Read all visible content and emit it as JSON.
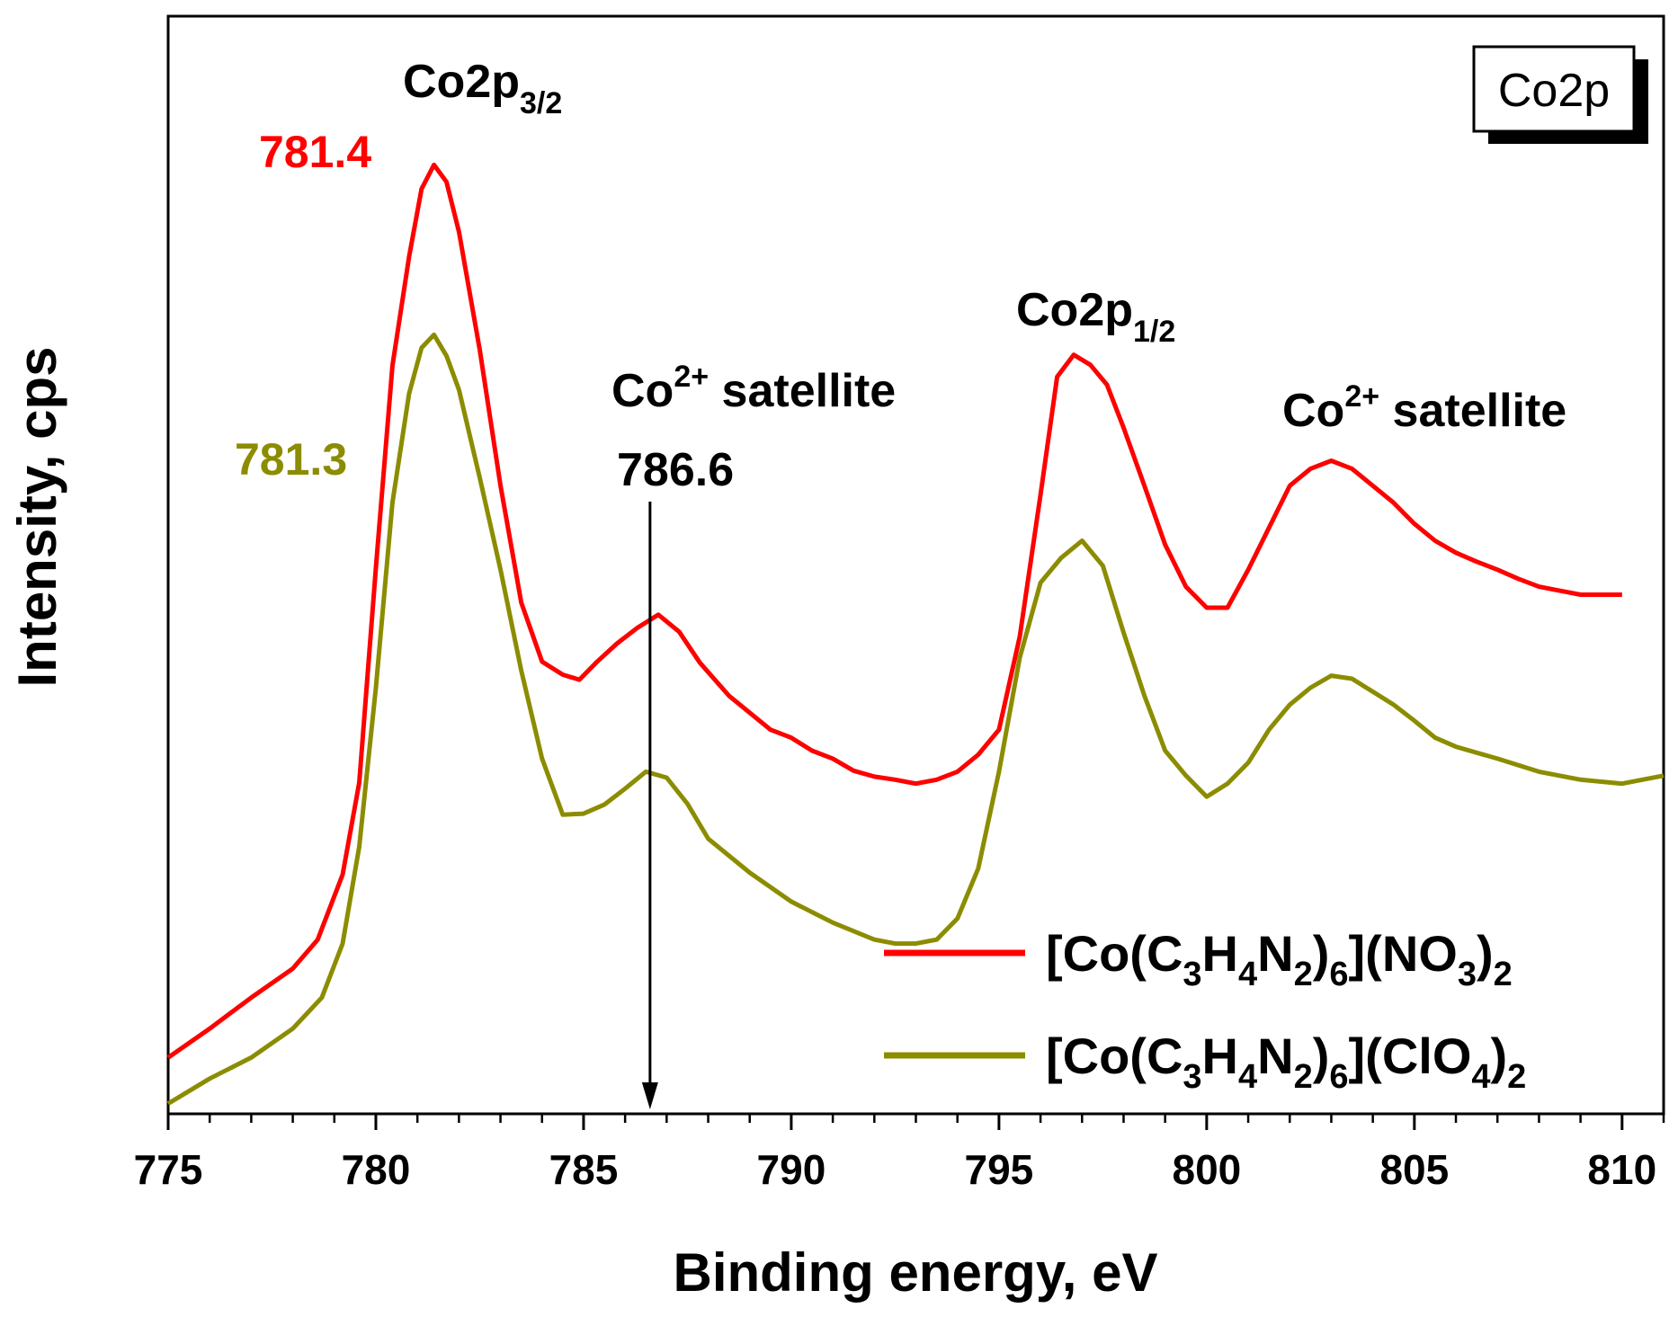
{
  "chart_data": {
    "type": "line",
    "title": "",
    "inset_label": "Co2p",
    "xlabel": "Binding energy, eV",
    "ylabel": "Intensity, cps",
    "xlim": [
      775,
      811
    ],
    "ylim": [
      0,
      1
    ],
    "y_ticks_shown": false,
    "grid": false,
    "x_ticks": [
      "775",
      "780",
      "785",
      "790",
      "795",
      "800",
      "805",
      "810"
    ],
    "legend_position": "bottom-right",
    "series": [
      {
        "name": "[Co(C3H4N2)6](NO3)2",
        "legend": {
          "base1": "[Co(C",
          "s1": "3",
          "base2": "H",
          "s2": "4",
          "base3": "N",
          "s3": "2",
          "base4": ")",
          "s4": "6",
          "base5": "](NO",
          "s5": "3",
          "base6": ")",
          "s6": "2"
        },
        "color": "#ff0000",
        "x": [
          775,
          776,
          777,
          778,
          778.6,
          779.2,
          779.6,
          780,
          780.4,
          780.8,
          781.1,
          781.4,
          781.7,
          782,
          782.5,
          783,
          783.5,
          784,
          784.5,
          784.9,
          785.3,
          785.8,
          786.3,
          786.8,
          787.3,
          787.8,
          788.5,
          789,
          789.5,
          790,
          790.5,
          791,
          791.5,
          792,
          792.5,
          793,
          793.5,
          794,
          794.5,
          795,
          795.5,
          796,
          796.4,
          796.8,
          797.2,
          797.6,
          798,
          798.5,
          799,
          799.5,
          800,
          800.5,
          801,
          801.5,
          802,
          802.5,
          803,
          803.5,
          804,
          804.5,
          805,
          805.5,
          806,
          806.5,
          807,
          807.5,
          808,
          808.5,
          809,
          809.5,
          810
        ],
        "values": [
          0.05,
          0.079,
          0.11,
          0.139,
          0.168,
          0.233,
          0.325,
          0.54,
          0.742,
          0.851,
          0.919,
          0.943,
          0.926,
          0.876,
          0.758,
          0.622,
          0.505,
          0.446,
          0.433,
          0.428,
          0.445,
          0.464,
          0.48,
          0.493,
          0.476,
          0.445,
          0.412,
          0.395,
          0.378,
          0.37,
          0.357,
          0.349,
          0.337,
          0.331,
          0.328,
          0.324,
          0.328,
          0.336,
          0.353,
          0.378,
          0.471,
          0.613,
          0.731,
          0.753,
          0.743,
          0.723,
          0.68,
          0.622,
          0.563,
          0.521,
          0.5,
          0.5,
          0.538,
          0.58,
          0.622,
          0.639,
          0.647,
          0.639,
          0.622,
          0.605,
          0.584,
          0.567,
          0.555,
          0.546,
          0.538,
          0.529,
          0.521,
          0.517,
          0.513,
          0.513,
          0.513
        ]
      },
      {
        "name": "[Co(C3H4N2)6](ClO4)2",
        "legend": {
          "base1": "[Co(C",
          "s1": "3",
          "base2": "H",
          "s2": "4",
          "base3": "N",
          "s3": "2",
          "base4": ")",
          "s4": "6",
          "base5": "](ClO",
          "s5": "4",
          "base6": ")",
          "s6": "2"
        },
        "color": "#8c8c00",
        "x": [
          775,
          776,
          777,
          778,
          778.7,
          779.2,
          779.6,
          780,
          780.4,
          780.8,
          781.1,
          781.4,
          781.7,
          782,
          782.5,
          783,
          783.5,
          784,
          784.5,
          785,
          785.5,
          786,
          786.5,
          787,
          787.5,
          788,
          788.5,
          789,
          790,
          791,
          792,
          792.5,
          793,
          793.5,
          794,
          794.5,
          795,
          795.5,
          796,
          796.5,
          797,
          797.5,
          798,
          798.5,
          799,
          799.5,
          800,
          800.5,
          801,
          801.5,
          802,
          802.5,
          803,
          803.5,
          804,
          804.5,
          805,
          805.5,
          806,
          807,
          808,
          809,
          810,
          811
        ],
        "values": [
          0.004,
          0.029,
          0.05,
          0.079,
          0.11,
          0.164,
          0.261,
          0.42,
          0.605,
          0.714,
          0.76,
          0.773,
          0.752,
          0.718,
          0.63,
          0.538,
          0.437,
          0.349,
          0.293,
          0.294,
          0.303,
          0.319,
          0.336,
          0.33,
          0.304,
          0.269,
          0.252,
          0.235,
          0.206,
          0.185,
          0.168,
          0.164,
          0.164,
          0.168,
          0.189,
          0.239,
          0.336,
          0.45,
          0.525,
          0.55,
          0.567,
          0.542,
          0.475,
          0.412,
          0.357,
          0.332,
          0.311,
          0.324,
          0.345,
          0.378,
          0.403,
          0.42,
          0.432,
          0.429,
          0.416,
          0.403,
          0.387,
          0.37,
          0.361,
          0.349,
          0.336,
          0.328,
          0.324,
          0.332
        ]
      }
    ],
    "annotations": {
      "co2p32": {
        "base": "Co2p",
        "sub": "3/2"
      },
      "co2p12": {
        "base": "Co2p",
        "sub": "1/2"
      },
      "sat1": {
        "base": "Co",
        "sup": "2+",
        "rest": " satellite"
      },
      "sat2": {
        "base": "Co",
        "sup": "2+",
        "rest": " satellite"
      },
      "peak_red": "781.4",
      "peak_olive": "781.3",
      "arrow_value": "786.6",
      "arrow_x": 786.6
    }
  }
}
